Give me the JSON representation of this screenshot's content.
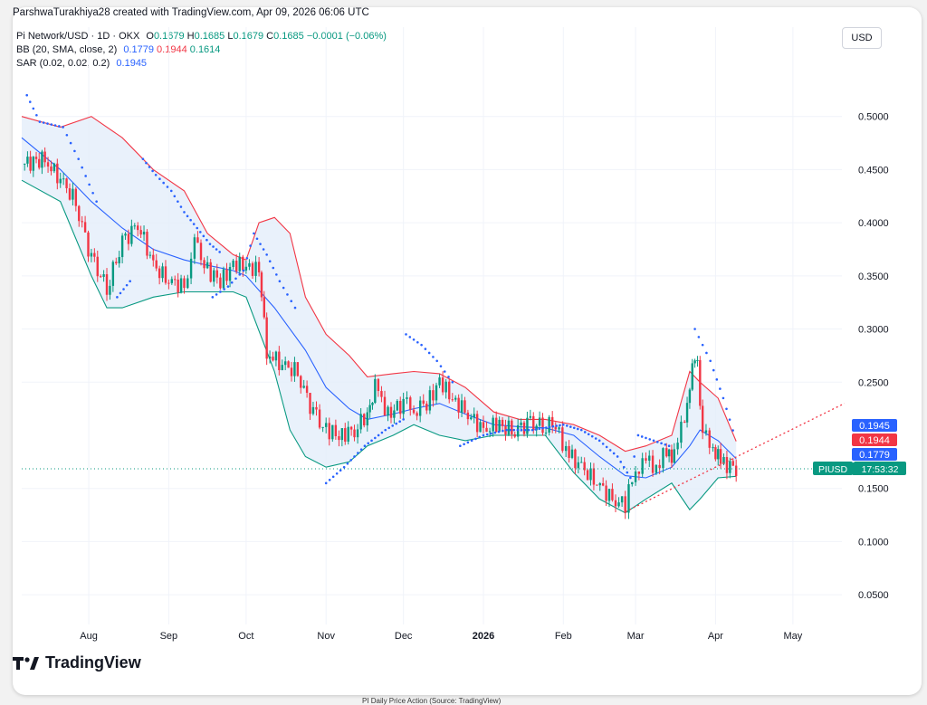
{
  "header": {
    "text": "ParshwaTurakhiya28 created with TradingView.com, Apr 09, 2026 06:06 UTC"
  },
  "legend": {
    "symbol": "Pi Network/USD · 1D · OKX",
    "o_label": "O",
    "o": "0.1679",
    "h_label": "H",
    "h": "0.1685",
    "l_label": "L",
    "l": "0.1679",
    "c_label": "C",
    "c": "0.1685",
    "change": "−0.0001 (−0.06%)",
    "bb_label": "BB (20, SMA, close, 2)",
    "bb_basis": "0.1779",
    "bb_upper": "0.1944",
    "bb_lower": "0.1614",
    "sar_label": "SAR (0.02, 0.02, 0.2)",
    "sar_value": "0.1945"
  },
  "currency_button": "USD",
  "logo": {
    "text": "TradingView"
  },
  "caption": "PI Daily Price Action (Source: TradingView)",
  "colors": {
    "up": "#089981",
    "down": "#f23645",
    "basis": "#2962ff",
    "upper": "#f23645",
    "lower": "#089981",
    "sar": "#2962ff",
    "fill": "#e3eefa",
    "grid": "#f0f3fa",
    "axis_text": "#131722"
  },
  "chart_data": {
    "type": "candlestick",
    "symbol": "PIUSD",
    "y_ticks": [
      "0.5000",
      "0.4500",
      "0.4000",
      "0.3500",
      "0.3000",
      "0.2500",
      "0.1500",
      "0.1000",
      "0.0500"
    ],
    "y_tick_values": [
      0.5,
      0.45,
      0.4,
      0.35,
      0.3,
      0.25,
      0.15,
      0.1,
      0.05
    ],
    "ylim": [
      0.022,
      0.55
    ],
    "x_ticks": [
      "Aug",
      "Sep",
      "Oct",
      "Nov",
      "Dec",
      "2026",
      "Feb",
      "Mar",
      "Apr",
      "May"
    ],
    "x_tick_dates": [
      "2025-08-01",
      "2025-09-01",
      "2025-10-01",
      "2025-11-01",
      "2025-12-01",
      "2026-01-01",
      "2026-02-01",
      "2026-03-01",
      "2026-04-01",
      "2026-05-01"
    ],
    "x_range": [
      "2025-07-06",
      "2026-05-20"
    ],
    "last_date": "2026-04-09",
    "price_labels": [
      {
        "text": "0.1945",
        "value": 0.1945,
        "color": "#2962ff"
      },
      {
        "text": "0.1944",
        "value": 0.1944,
        "color": "#f23645"
      },
      {
        "text": "0.1779",
        "value": 0.1779,
        "color": "#2962ff"
      },
      {
        "text": "0.1614",
        "value": 0.1614,
        "color": "#089981"
      }
    ],
    "last_price": {
      "symbol": "PIUSD",
      "countdown": "17:53:32",
      "value": 0.1685
    },
    "closes": [
      {
        "date": "2025-07-06",
        "value": 0.455
      },
      {
        "date": "2025-07-15",
        "value": 0.46
      },
      {
        "date": "2025-07-21",
        "value": 0.44
      },
      {
        "date": "2025-07-27",
        "value": 0.42
      },
      {
        "date": "2025-08-02",
        "value": 0.365
      },
      {
        "date": "2025-08-08",
        "value": 0.34
      },
      {
        "date": "2025-08-14",
        "value": 0.38
      },
      {
        "date": "2025-08-20",
        "value": 0.4
      },
      {
        "date": "2025-08-26",
        "value": 0.36
      },
      {
        "date": "2025-09-01",
        "value": 0.345
      },
      {
        "date": "2025-09-07",
        "value": 0.34
      },
      {
        "date": "2025-09-11",
        "value": 0.38
      },
      {
        "date": "2025-09-16",
        "value": 0.355
      },
      {
        "date": "2025-09-21",
        "value": 0.345
      },
      {
        "date": "2025-09-26",
        "value": 0.36
      },
      {
        "date": "2025-10-01",
        "value": 0.36
      },
      {
        "date": "2025-10-06",
        "value": 0.355
      },
      {
        "date": "2025-10-09",
        "value": 0.28
      },
      {
        "date": "2025-10-15",
        "value": 0.265
      },
      {
        "date": "2025-10-21",
        "value": 0.26
      },
      {
        "date": "2025-10-27",
        "value": 0.22
      },
      {
        "date": "2025-11-01",
        "value": 0.205
      },
      {
        "date": "2025-11-06",
        "value": 0.2
      },
      {
        "date": "2025-11-12",
        "value": 0.205
      },
      {
        "date": "2025-11-17",
        "value": 0.22
      },
      {
        "date": "2025-11-20",
        "value": 0.245
      },
      {
        "date": "2025-11-25",
        "value": 0.22
      },
      {
        "date": "2025-12-01",
        "value": 0.23
      },
      {
        "date": "2025-12-05",
        "value": 0.225
      },
      {
        "date": "2025-12-10",
        "value": 0.23
      },
      {
        "date": "2025-12-15",
        "value": 0.25
      },
      {
        "date": "2025-12-20",
        "value": 0.235
      },
      {
        "date": "2025-12-26",
        "value": 0.22
      },
      {
        "date": "2026-01-01",
        "value": 0.205
      },
      {
        "date": "2026-01-06",
        "value": 0.21
      },
      {
        "date": "2026-01-12",
        "value": 0.205
      },
      {
        "date": "2026-01-18",
        "value": 0.21
      },
      {
        "date": "2026-01-24",
        "value": 0.21
      },
      {
        "date": "2026-01-29",
        "value": 0.21
      },
      {
        "date": "2026-02-02",
        "value": 0.185
      },
      {
        "date": "2026-02-08",
        "value": 0.17
      },
      {
        "date": "2026-02-14",
        "value": 0.155
      },
      {
        "date": "2026-02-20",
        "value": 0.14
      },
      {
        "date": "2026-02-25",
        "value": 0.135
      },
      {
        "date": "2026-03-01",
        "value": 0.17
      },
      {
        "date": "2026-03-05",
        "value": 0.175
      },
      {
        "date": "2026-03-09",
        "value": 0.17
      },
      {
        "date": "2026-03-13",
        "value": 0.185
      },
      {
        "date": "2026-03-16",
        "value": 0.18
      },
      {
        "date": "2026-03-20",
        "value": 0.22
      },
      {
        "date": "2026-03-23",
        "value": 0.26
      },
      {
        "date": "2026-03-25",
        "value": 0.27
      },
      {
        "date": "2026-03-27",
        "value": 0.2
      },
      {
        "date": "2026-03-31",
        "value": 0.19
      },
      {
        "date": "2026-04-03",
        "value": 0.175
      },
      {
        "date": "2026-04-09",
        "value": 0.1685
      }
    ],
    "bb_upper": [
      {
        "date": "2025-07-06",
        "value": 0.5
      },
      {
        "date": "2025-07-21",
        "value": 0.49
      },
      {
        "date": "2025-08-02",
        "value": 0.5
      },
      {
        "date": "2025-08-14",
        "value": 0.48
      },
      {
        "date": "2025-08-26",
        "value": 0.45
      },
      {
        "date": "2025-09-07",
        "value": 0.43
      },
      {
        "date": "2025-09-16",
        "value": 0.39
      },
      {
        "date": "2025-09-26",
        "value": 0.37
      },
      {
        "date": "2025-10-01",
        "value": 0.365
      },
      {
        "date": "2025-10-06",
        "value": 0.4
      },
      {
        "date": "2025-10-12",
        "value": 0.405
      },
      {
        "date": "2025-10-18",
        "value": 0.39
      },
      {
        "date": "2025-10-24",
        "value": 0.33
      },
      {
        "date": "2025-11-01",
        "value": 0.295
      },
      {
        "date": "2025-11-10",
        "value": 0.275
      },
      {
        "date": "2025-11-17",
        "value": 0.255
      },
      {
        "date": "2025-11-27",
        "value": 0.258
      },
      {
        "date": "2025-12-05",
        "value": 0.26
      },
      {
        "date": "2025-12-15",
        "value": 0.258
      },
      {
        "date": "2025-12-25",
        "value": 0.245
      },
      {
        "date": "2026-01-05",
        "value": 0.222
      },
      {
        "date": "2026-01-15",
        "value": 0.215
      },
      {
        "date": "2026-01-25",
        "value": 0.215
      },
      {
        "date": "2026-02-05",
        "value": 0.21
      },
      {
        "date": "2026-02-15",
        "value": 0.2
      },
      {
        "date": "2026-02-25",
        "value": 0.185
      },
      {
        "date": "2026-03-05",
        "value": 0.19
      },
      {
        "date": "2026-03-15",
        "value": 0.2
      },
      {
        "date": "2026-03-22",
        "value": 0.26
      },
      {
        "date": "2026-03-26",
        "value": 0.25
      },
      {
        "date": "2026-04-02",
        "value": 0.235
      },
      {
        "date": "2026-04-09",
        "value": 0.1944
      }
    ],
    "bb_basis": [
      {
        "date": "2025-07-06",
        "value": 0.48
      },
      {
        "date": "2025-07-21",
        "value": 0.45
      },
      {
        "date": "2025-08-02",
        "value": 0.42
      },
      {
        "date": "2025-08-14",
        "value": 0.395
      },
      {
        "date": "2025-08-26",
        "value": 0.375
      },
      {
        "date": "2025-09-07",
        "value": 0.365
      },
      {
        "date": "2025-09-16",
        "value": 0.36
      },
      {
        "date": "2025-09-26",
        "value": 0.355
      },
      {
        "date": "2025-10-01",
        "value": 0.35
      },
      {
        "date": "2025-10-12",
        "value": 0.32
      },
      {
        "date": "2025-10-24",
        "value": 0.28
      },
      {
        "date": "2025-11-01",
        "value": 0.245
      },
      {
        "date": "2025-11-10",
        "value": 0.225
      },
      {
        "date": "2025-11-17",
        "value": 0.215
      },
      {
        "date": "2025-11-27",
        "value": 0.22
      },
      {
        "date": "2025-12-05",
        "value": 0.225
      },
      {
        "date": "2025-12-15",
        "value": 0.23
      },
      {
        "date": "2025-12-25",
        "value": 0.22
      },
      {
        "date": "2026-01-05",
        "value": 0.21
      },
      {
        "date": "2026-01-15",
        "value": 0.208
      },
      {
        "date": "2026-01-25",
        "value": 0.207
      },
      {
        "date": "2026-02-05",
        "value": 0.2
      },
      {
        "date": "2026-02-15",
        "value": 0.18
      },
      {
        "date": "2026-02-25",
        "value": 0.162
      },
      {
        "date": "2026-03-05",
        "value": 0.16
      },
      {
        "date": "2026-03-15",
        "value": 0.17
      },
      {
        "date": "2026-03-22",
        "value": 0.19
      },
      {
        "date": "2026-03-26",
        "value": 0.205
      },
      {
        "date": "2026-04-02",
        "value": 0.195
      },
      {
        "date": "2026-04-09",
        "value": 0.1779
      }
    ],
    "bb_lower": [
      {
        "date": "2025-07-06",
        "value": 0.44
      },
      {
        "date": "2025-07-21",
        "value": 0.42
      },
      {
        "date": "2025-08-02",
        "value": 0.35
      },
      {
        "date": "2025-08-08",
        "value": 0.32
      },
      {
        "date": "2025-08-14",
        "value": 0.32
      },
      {
        "date": "2025-08-26",
        "value": 0.33
      },
      {
        "date": "2025-09-07",
        "value": 0.335
      },
      {
        "date": "2025-09-16",
        "value": 0.335
      },
      {
        "date": "2025-09-26",
        "value": 0.335
      },
      {
        "date": "2025-10-01",
        "value": 0.33
      },
      {
        "date": "2025-10-12",
        "value": 0.26
      },
      {
        "date": "2025-10-18",
        "value": 0.205
      },
      {
        "date": "2025-10-24",
        "value": 0.18
      },
      {
        "date": "2025-11-01",
        "value": 0.17
      },
      {
        "date": "2025-11-10",
        "value": 0.175
      },
      {
        "date": "2025-11-17",
        "value": 0.19
      },
      {
        "date": "2025-11-27",
        "value": 0.2
      },
      {
        "date": "2025-12-05",
        "value": 0.21
      },
      {
        "date": "2025-12-15",
        "value": 0.2
      },
      {
        "date": "2025-12-25",
        "value": 0.195
      },
      {
        "date": "2026-01-05",
        "value": 0.2
      },
      {
        "date": "2026-01-15",
        "value": 0.2
      },
      {
        "date": "2026-01-25",
        "value": 0.2
      },
      {
        "date": "2026-02-05",
        "value": 0.165
      },
      {
        "date": "2026-02-15",
        "value": 0.14
      },
      {
        "date": "2026-02-25",
        "value": 0.127
      },
      {
        "date": "2026-03-05",
        "value": 0.14
      },
      {
        "date": "2026-03-15",
        "value": 0.155
      },
      {
        "date": "2026-03-22",
        "value": 0.13
      },
      {
        "date": "2026-03-26",
        "value": 0.14
      },
      {
        "date": "2026-04-02",
        "value": 0.16
      },
      {
        "date": "2026-04-09",
        "value": 0.1614
      }
    ],
    "sar": [
      {
        "date": "2025-07-08",
        "value": 0.52
      },
      {
        "date": "2025-07-13",
        "value": 0.495
      },
      {
        "date": "2025-07-22",
        "value": 0.49
      },
      {
        "date": "2025-07-28",
        "value": 0.46
      },
      {
        "date": "2025-08-04",
        "value": 0.42
      },
      {
        "date": "2025-08-12",
        "value": 0.33
      },
      {
        "date": "2025-08-17",
        "value": 0.345
      },
      {
        "date": "2025-08-22",
        "value": 0.46
      },
      {
        "date": "2025-08-27",
        "value": 0.445
      },
      {
        "date": "2025-09-02",
        "value": 0.43
      },
      {
        "date": "2025-09-07",
        "value": 0.41
      },
      {
        "date": "2025-09-12",
        "value": 0.395
      },
      {
        "date": "2025-09-17",
        "value": 0.38
      },
      {
        "date": "2025-09-22",
        "value": 0.37
      },
      {
        "date": "2025-09-18",
        "value": 0.33
      },
      {
        "date": "2025-09-24",
        "value": 0.34
      },
      {
        "date": "2025-09-30",
        "value": 0.355
      },
      {
        "date": "2025-10-04",
        "value": 0.39
      },
      {
        "date": "2025-10-09",
        "value": 0.37
      },
      {
        "date": "2025-10-14",
        "value": 0.345
      },
      {
        "date": "2025-10-20",
        "value": 0.32
      },
      {
        "date": "2025-11-01",
        "value": 0.155
      },
      {
        "date": "2025-11-08",
        "value": 0.17
      },
      {
        "date": "2025-11-16",
        "value": 0.19
      },
      {
        "date": "2025-11-24",
        "value": 0.205
      },
      {
        "date": "2025-12-01",
        "value": 0.215
      },
      {
        "date": "2025-12-02",
        "value": 0.295
      },
      {
        "date": "2025-12-08",
        "value": 0.285
      },
      {
        "date": "2025-12-14",
        "value": 0.27
      },
      {
        "date": "2025-12-20",
        "value": 0.25
      },
      {
        "date": "2025-12-23",
        "value": 0.19
      },
      {
        "date": "2026-01-01",
        "value": 0.2
      },
      {
        "date": "2026-01-10",
        "value": 0.205
      },
      {
        "date": "2026-01-20",
        "value": 0.205
      },
      {
        "date": "2026-02-01",
        "value": 0.21
      },
      {
        "date": "2026-02-08",
        "value": 0.205
      },
      {
        "date": "2026-02-15",
        "value": 0.195
      },
      {
        "date": "2026-02-22",
        "value": 0.18
      },
      {
        "date": "2026-02-27",
        "value": 0.16
      },
      {
        "date": "2026-03-02",
        "value": 0.2
      },
      {
        "date": "2026-03-08",
        "value": 0.195
      },
      {
        "date": "2026-03-14",
        "value": 0.19
      },
      {
        "date": "2026-03-24",
        "value": 0.3
      },
      {
        "date": "2026-03-30",
        "value": 0.27
      },
      {
        "date": "2026-04-04",
        "value": 0.235
      },
      {
        "date": "2026-04-09",
        "value": 0.1945
      }
    ],
    "trendline": {
      "from": {
        "date": "2026-02-25",
        "value": 0.128
      },
      "to": {
        "date": "2026-05-21",
        "value": 0.23
      }
    }
  }
}
